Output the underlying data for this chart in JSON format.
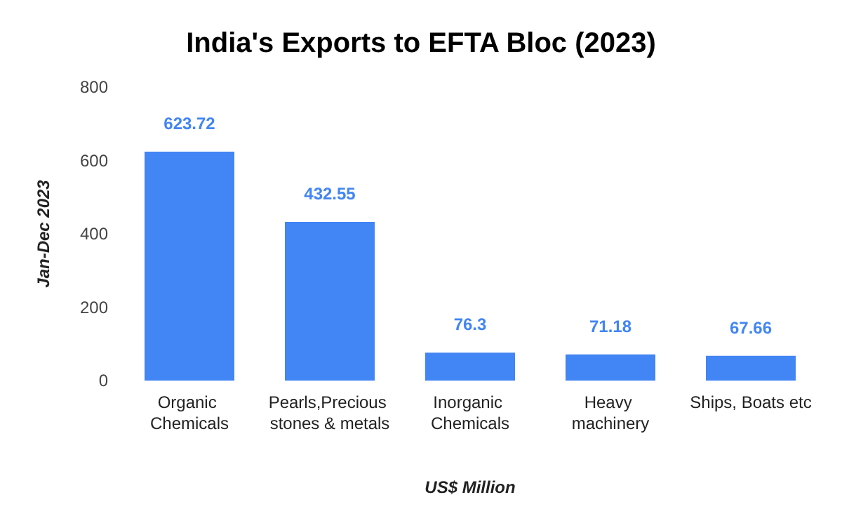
{
  "chart_data": {
    "type": "bar",
    "title": "India's Exports to EFTA Bloc (2023)",
    "xlabel": "US$ Million",
    "ylabel": "Jan-Dec 2023",
    "categories": [
      "Organic Chemicals",
      "Pearls,Precious stones & metals",
      "Inorganic Chemicals",
      "Heavy machinery",
      "Ships, Boats etc"
    ],
    "values": [
      623.72,
      432.55,
      76.3,
      71.18,
      67.66
    ],
    "color": "#4285f4",
    "data_labels": true,
    "ylim": [
      0,
      800
    ],
    "yticks": [
      0,
      200,
      400,
      600,
      800
    ],
    "grid": false
  }
}
